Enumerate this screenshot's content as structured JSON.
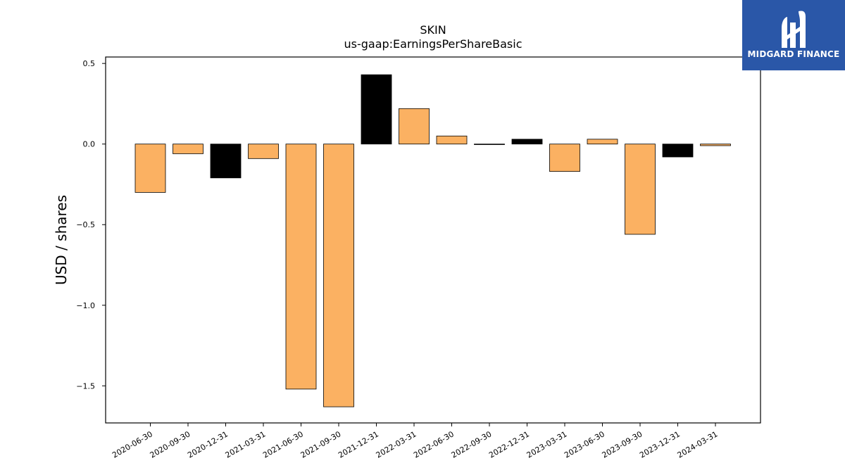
{
  "chart_data": {
    "type": "bar",
    "title": "SKIN",
    "subtitle": "us-gaap:EarningsPerShareBasic",
    "ylabel": "USD / shares",
    "ylim": [
      -1.73,
      0.54
    ],
    "yticks": [
      0.5,
      0.0,
      -0.5,
      -1.0,
      -1.5
    ],
    "ytick_labels": [
      "0.5",
      "0.0",
      "−0.5",
      "−1.0",
      "−1.5"
    ],
    "categories": [
      "2020-06-30",
      "2020-09-30",
      "2020-12-31",
      "2021-03-31",
      "2021-06-30",
      "2021-09-30",
      "2021-12-31",
      "2022-03-31",
      "2022-06-30",
      "2022-09-30",
      "2022-12-31",
      "2023-03-31",
      "2023-06-30",
      "2023-09-30",
      "2023-12-31",
      "2024-03-31"
    ],
    "values": [
      -0.3,
      -0.06,
      -0.21,
      -0.09,
      -1.52,
      -1.63,
      0.43,
      0.22,
      0.05,
      0.0,
      0.03,
      -0.17,
      0.03,
      -0.56,
      -0.08,
      -0.01
    ],
    "bar_colors": [
      "#fbb162",
      "#fbb162",
      "#000000",
      "#fbb162",
      "#fbb162",
      "#fbb162",
      "#000000",
      "#fbb162",
      "#fbb162",
      "#fbb162",
      "#000000",
      "#fbb162",
      "#fbb162",
      "#fbb162",
      "#000000",
      "#fbb162"
    ],
    "grid": false
  },
  "logo": {
    "text": "MIDGARD FINANCE",
    "background": "#2a57a8"
  }
}
